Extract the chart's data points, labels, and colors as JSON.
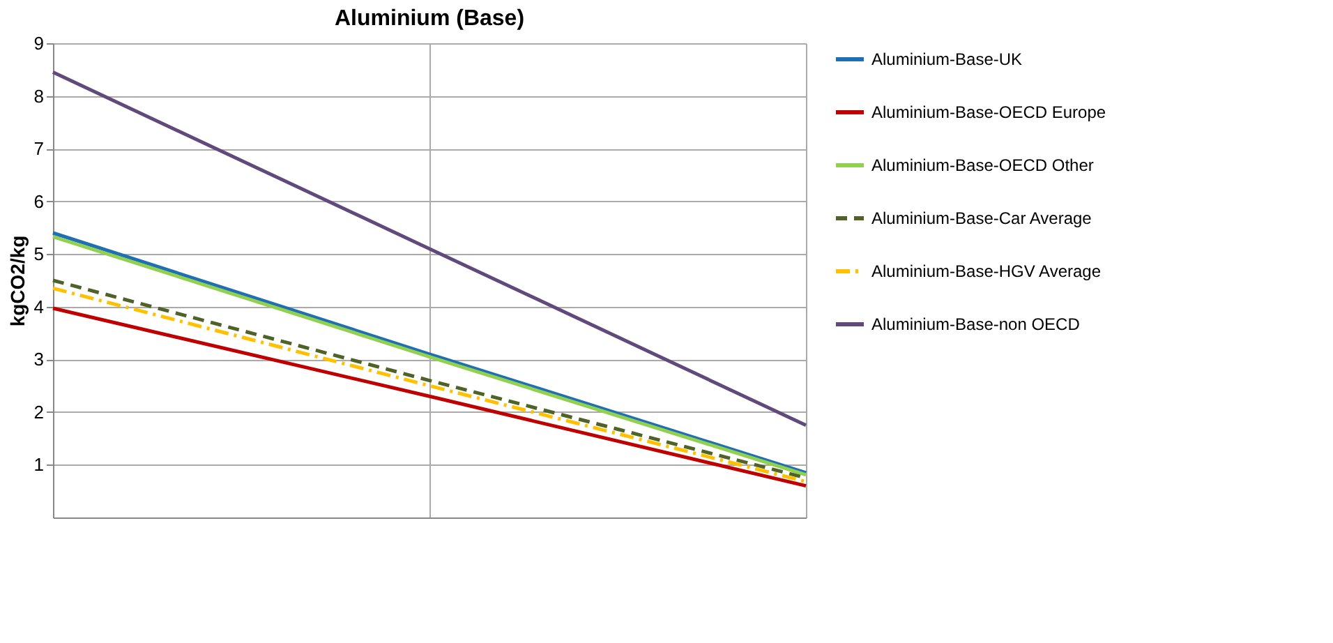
{
  "chart_data": {
    "type": "line",
    "title": "Aluminium  (Base)",
    "ylabel": "kgCO2/kg",
    "categories": [
      null,
      null,
      null
    ],
    "tick_labels": "y",
    "ylim": [
      0,
      9
    ],
    "yticks": [
      1,
      2,
      3,
      4,
      5,
      6,
      7,
      8,
      9
    ],
    "grid": true,
    "legend": "right",
    "marker": "none",
    "series": [
      {
        "name": "Aluminium-Base-UK",
        "color": "#1f6fb5",
        "line_style": "solid",
        "values": [
          5.4,
          3.1,
          0.85
        ]
      },
      {
        "name": "Aluminium-Base-OECD Europe",
        "color": "#c00000",
        "line_style": "solid",
        "values": [
          3.97,
          2.3,
          0.6
        ]
      },
      {
        "name": "Aluminium-Base-OECD Other",
        "color": "#92d050",
        "line_style": "solid",
        "values": [
          5.33,
          3.05,
          0.81
        ]
      },
      {
        "name": "Aluminium-Base-Car Average",
        "color": "#4f6228",
        "line_style": "dashed",
        "values": [
          4.5,
          2.6,
          0.75
        ]
      },
      {
        "name": "Aluminium-Base-HGV Average",
        "color": "#ffc000",
        "line_style": "dashdot",
        "values": [
          4.35,
          2.5,
          0.68
        ]
      },
      {
        "name": "Aluminium-Base-non OECD",
        "color": "#604a7b",
        "line_style": "solid",
        "values": [
          8.45,
          5.1,
          1.75
        ]
      }
    ]
  }
}
